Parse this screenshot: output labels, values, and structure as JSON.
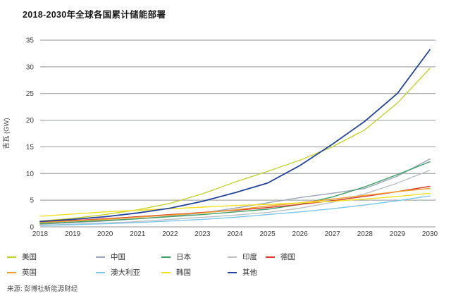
{
  "chart_data": {
    "type": "line",
    "title": "2018-2030年全球各国累计储能部署",
    "ylabel": "吉瓦 (GW)",
    "xlabel": "",
    "ylim": [
      0,
      35
    ],
    "yticks": [
      0,
      5,
      10,
      15,
      20,
      25,
      30,
      35
    ],
    "x": [
      "2018",
      "2019",
      "2020",
      "2021",
      "2022",
      "2023",
      "2024",
      "2025",
      "2026",
      "2027",
      "2028",
      "2029",
      "2030"
    ],
    "grid": "horizontal-only",
    "grid_color": "#919495",
    "tick_color": "#3d3d3d",
    "legend_position": "bottom",
    "source": "来源: 彭博社新能源财经",
    "series": [
      {
        "name": "美国",
        "color": "#c3d230",
        "width": 1.4,
        "values": [
          1.1,
          1.6,
          2.3,
          3.2,
          4.4,
          6.2,
          8.4,
          10.4,
          12.5,
          15.0,
          18.2,
          23.2,
          29.7
        ]
      },
      {
        "name": "中国",
        "color": "#9aa5bc",
        "width": 1.4,
        "values": [
          0.5,
          0.8,
          1.1,
          1.5,
          2.0,
          2.6,
          3.5,
          4.5,
          5.5,
          6.3,
          7.2,
          9.5,
          12.7
        ]
      },
      {
        "name": "日本",
        "color": "#3f9e63",
        "width": 1.4,
        "values": [
          0.6,
          0.9,
          1.2,
          1.5,
          1.9,
          2.3,
          2.8,
          3.3,
          4.2,
          5.6,
          7.5,
          9.8,
          12.2
        ]
      },
      {
        "name": "印度",
        "color": "#bcc0c4",
        "width": 1.4,
        "values": [
          0.3,
          0.5,
          0.7,
          1.0,
          1.4,
          1.8,
          2.2,
          2.7,
          3.5,
          4.6,
          6.2,
          8.2,
          10.6
        ]
      },
      {
        "name": "德国",
        "color": "#d93a2b",
        "width": 1.4,
        "values": [
          0.9,
          1.2,
          1.5,
          1.9,
          2.3,
          2.7,
          3.1,
          3.6,
          4.2,
          4.9,
          5.7,
          6.6,
          7.6
        ]
      },
      {
        "name": "英国",
        "color": "#f0a22e",
        "width": 1.4,
        "values": [
          0.8,
          1.1,
          1.4,
          1.8,
          2.2,
          2.6,
          3.2,
          3.9,
          4.5,
          5.2,
          5.9,
          6.6,
          7.2
        ]
      },
      {
        "name": "澳大利亚",
        "color": "#7cc5e8",
        "width": 1.4,
        "values": [
          0.25,
          0.4,
          0.6,
          0.8,
          1.1,
          1.4,
          1.8,
          2.3,
          2.8,
          3.4,
          4.1,
          4.9,
          5.8
        ]
      },
      {
        "name": "韩国",
        "color": "#f3e11c",
        "width": 1.4,
        "values": [
          2.0,
          2.4,
          2.8,
          3.1,
          3.4,
          3.7,
          4.0,
          4.2,
          4.5,
          4.8,
          5.2,
          5.7,
          6.3
        ]
      },
      {
        "name": "其他",
        "color": "#24439b",
        "width": 1.8,
        "values": [
          1.0,
          1.4,
          1.9,
          2.6,
          3.5,
          4.8,
          6.4,
          8.2,
          11.5,
          15.5,
          19.8,
          25.0,
          33.2
        ]
      }
    ]
  }
}
